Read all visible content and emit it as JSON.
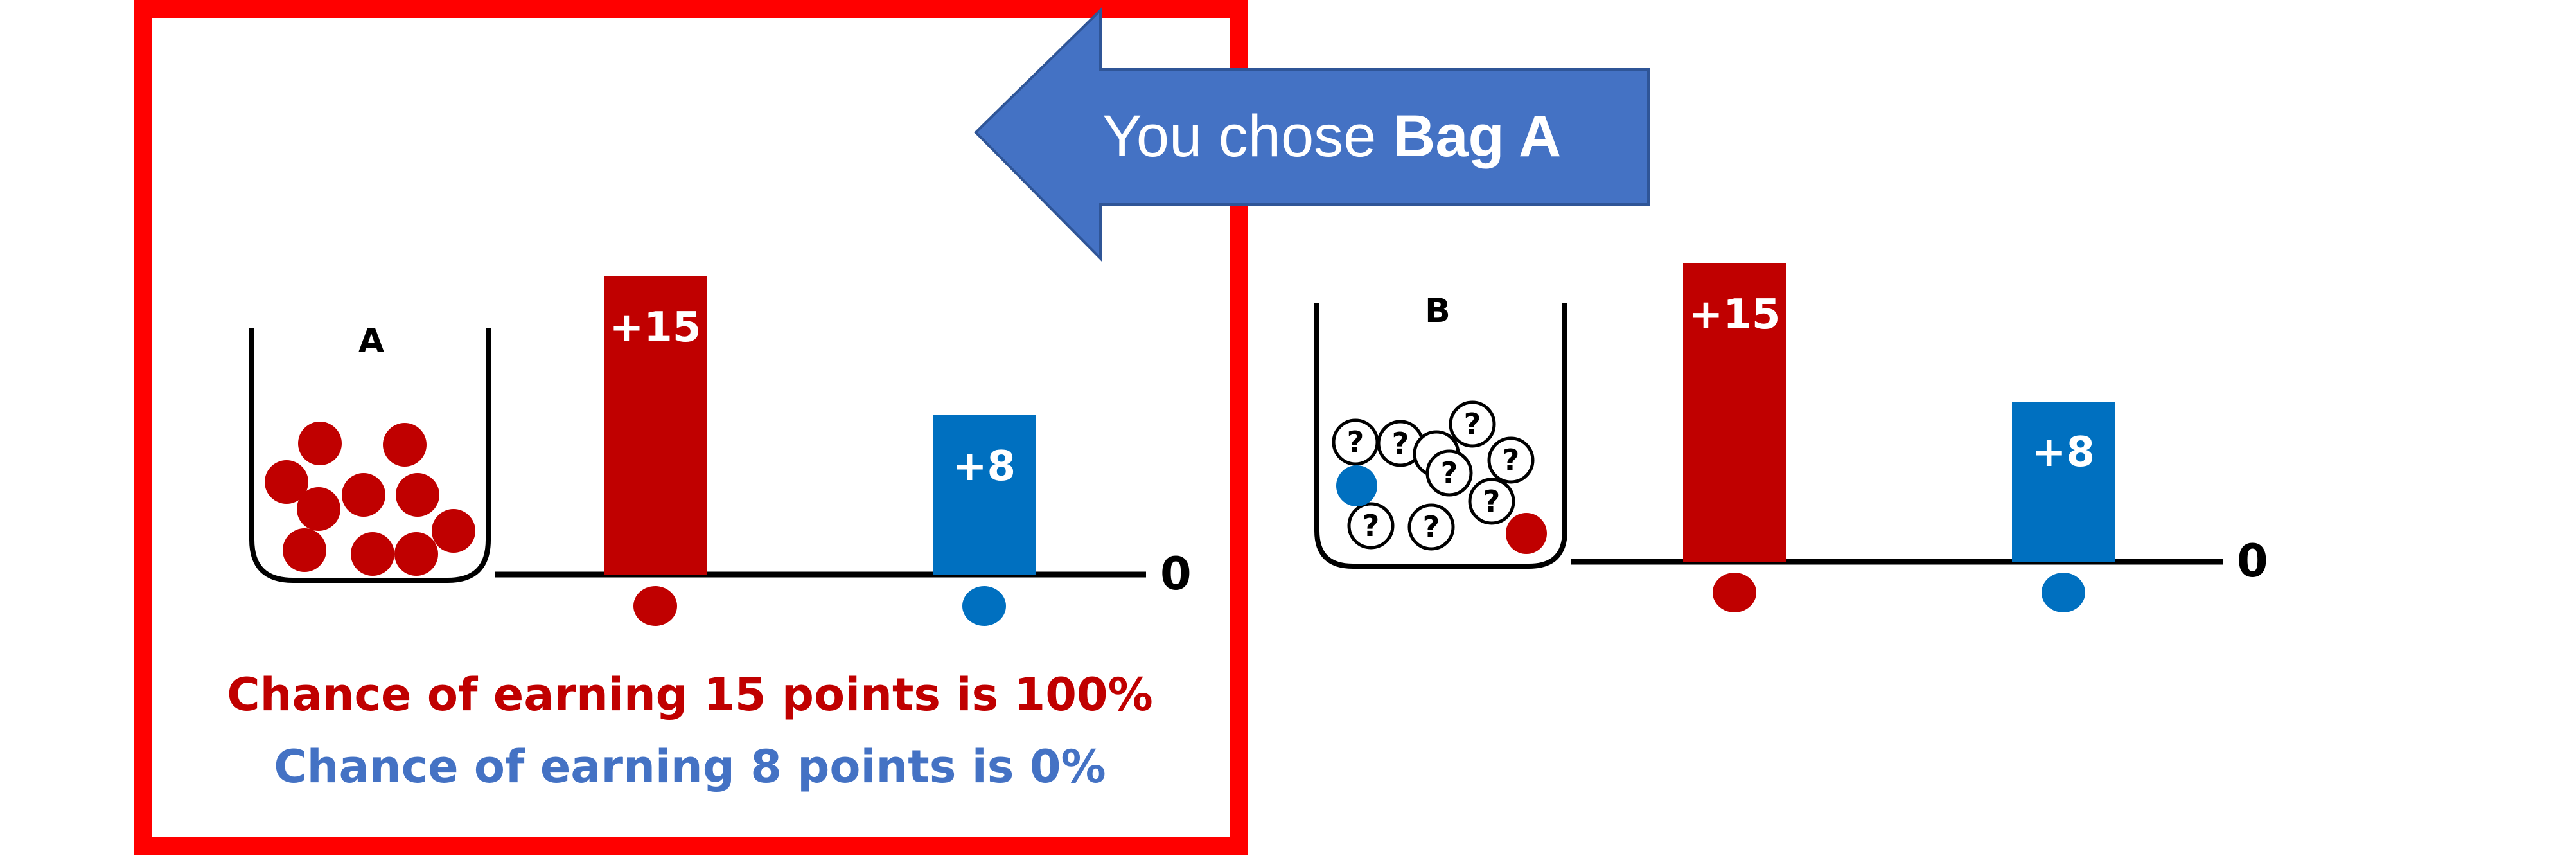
{
  "arrow": {
    "prefix": "You chose",
    "choice": "Bag A"
  },
  "panel_a": {
    "bag_label": "A",
    "bars": [
      {
        "label": "+15",
        "value": 15,
        "color": "#c00000"
      },
      {
        "label": "+8",
        "value": 8,
        "color": "#0070c0"
      }
    ],
    "baseline_label": "0",
    "chance_red": "Chance of earning 15 points is 100%",
    "chance_blue": "Chance of earning 8 points is 0%"
  },
  "panel_b": {
    "bag_label": "B",
    "bars": [
      {
        "label": "+15",
        "value": 15,
        "color": "#c00000"
      },
      {
        "label": "+8",
        "value": 8,
        "color": "#0070c0"
      }
    ],
    "baseline_label": "0",
    "unknown_ball_symbol": "?"
  },
  "colors": {
    "red": "#c00000",
    "blue": "#0070c0",
    "chance_blue_text": "#4472c4",
    "arrow_fill": "#4472c4",
    "arrow_stroke": "#2f5597",
    "highlight_frame": "#ff0000"
  }
}
